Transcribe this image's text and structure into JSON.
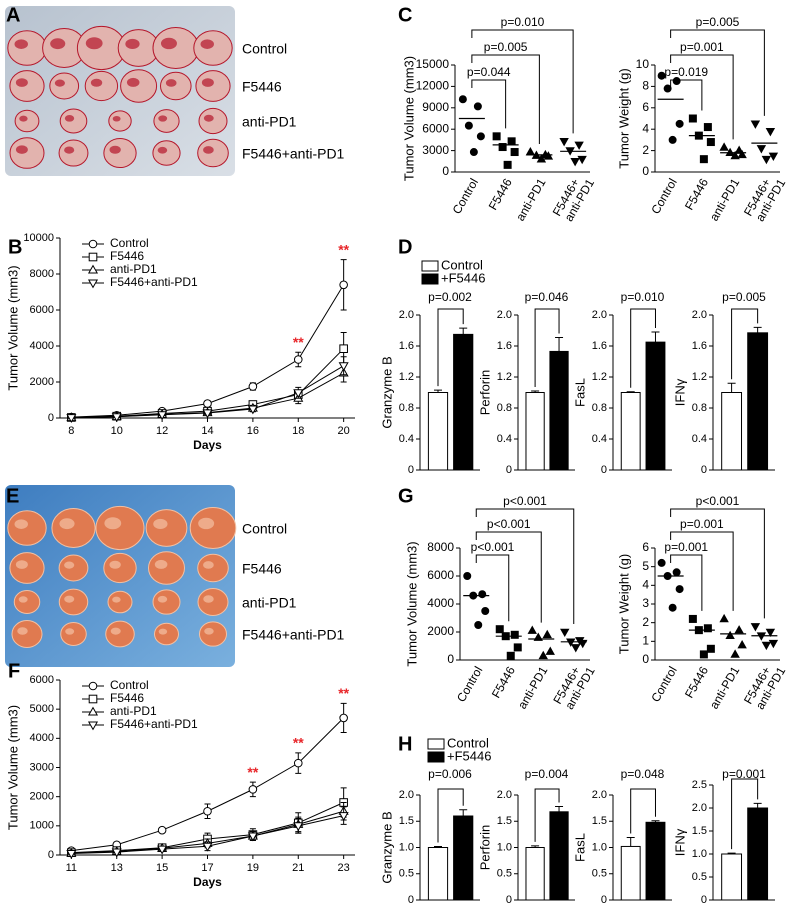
{
  "chart_data": [
    {
      "type": "photo",
      "panel": "A",
      "labels": [
        "Control",
        "F5446",
        "anti-PD1",
        "F5446+anti-PD1"
      ]
    },
    {
      "type": "dot",
      "panel": "C",
      "categories": [
        "Control",
        "F5446",
        "anti-PD1",
        [
          "F5446+",
          "anti-PD1"
        ]
      ],
      "markers": [
        "circle",
        "square",
        "triangle",
        "triangle-down"
      ],
      "color": "#000000",
      "charts": [
        {
          "ylabel": "Tumor Volume (mm3)",
          "ylim": [
            0,
            15000
          ],
          "yticks": [
            0,
            3000,
            6000,
            9000,
            12000,
            15000
          ],
          "groups": [
            [
              10200,
              9200,
              6500,
              5000,
              2800
            ],
            [
              5000,
              4300,
              3500,
              2800,
              1000
            ],
            [
              2800,
              2400,
              2300,
              2200,
              1800
            ],
            [
              4300,
              3800,
              3000,
              1800,
              1500
            ]
          ],
          "means": [
            7500,
            3800,
            2400,
            2900
          ],
          "p_values": [
            null,
            "p=0.044",
            "p=0.005",
            "p=0.010"
          ]
        },
        {
          "ylabel": "Tumor Weight (g)",
          "ylim": [
            0,
            10
          ],
          "yticks": [
            0,
            2,
            4,
            6,
            8,
            10
          ],
          "groups": [
            [
              9,
              8.5,
              7.8,
              4.5,
              3
            ],
            [
              5,
              4.2,
              3.4,
              2.8,
              1.2
            ],
            [
              2.3,
              2,
              1.8,
              1.6,
              1.5
            ],
            [
              4.5,
              3.8,
              2.2,
              1.5,
              1.2
            ]
          ],
          "means": [
            6.8,
            3.4,
            1.8,
            2.7
          ],
          "p_values": [
            null,
            "p=0.019",
            "p=0.001",
            "p=0.005"
          ]
        }
      ]
    },
    {
      "type": "line",
      "panel": "B",
      "x": [
        8,
        10,
        12,
        14,
        16,
        18,
        20
      ],
      "xlim": [
        7.5,
        20.5
      ],
      "xticks": [
        8,
        10,
        12,
        14,
        16,
        18,
        20
      ],
      "xlabel": "Days",
      "ylabel": "Tumor Volume (mm3)",
      "ylim": [
        0,
        10000
      ],
      "yticks": [
        0,
        2000,
        4000,
        6000,
        8000,
        10000
      ],
      "significance": [
        null,
        null,
        null,
        null,
        null,
        "**",
        "**"
      ],
      "significance_color": "#e8262a",
      "series": [
        {
          "name": "Control",
          "color": "#000000",
          "marker": "circle",
          "values": [
            50,
            150,
            380,
            800,
            1750,
            3250,
            7400
          ],
          "errors": [
            30,
            60,
            80,
            150,
            200,
            400,
            1400
          ]
        },
        {
          "name": "F5446",
          "color": "#000000",
          "marker": "square",
          "values": [
            30,
            100,
            250,
            380,
            750,
            1300,
            3850
          ],
          "errors": [
            20,
            40,
            60,
            100,
            150,
            250,
            900
          ]
        },
        {
          "name": "anti-PD1",
          "color": "#000000",
          "marker": "triangle",
          "values": [
            20,
            80,
            200,
            300,
            550,
            1100,
            2500
          ],
          "errors": [
            20,
            30,
            50,
            80,
            150,
            300,
            500
          ]
        },
        {
          "name": "F5446+anti-PD1",
          "color": "#000000",
          "marker": "triangle-down",
          "values": [
            20,
            70,
            180,
            280,
            500,
            1400,
            2900
          ],
          "errors": [
            20,
            30,
            50,
            80,
            150,
            300,
            500
          ]
        }
      ]
    },
    {
      "type": "bar",
      "panel": "D",
      "series": [
        {
          "name": "Control",
          "color": "#ffffff"
        },
        {
          "name": "+F5446",
          "color": "#000000"
        }
      ],
      "charts": [
        {
          "ylabel": "Granzyme B",
          "ylim": [
            0,
            2
          ],
          "yticks": [
            0,
            0.4,
            0.8,
            1.2,
            1.6,
            {
              "value": 2,
              "label": "2.0"
            }
          ],
          "values": [
            1.0,
            1.75
          ],
          "errors": [
            0.03,
            0.08
          ],
          "p_value": "p=0.002"
        },
        {
          "ylabel": "Perforin",
          "ylim": [
            0,
            2
          ],
          "yticks": [
            0,
            0.4,
            0.8,
            1.2,
            1.6,
            {
              "value": 2,
              "label": "2.0"
            }
          ],
          "values": [
            1.0,
            1.53
          ],
          "errors": [
            0.02,
            0.18
          ],
          "p_value": "p=0.046"
        },
        {
          "ylabel": "FasL",
          "ylim": [
            0,
            2
          ],
          "yticks": [
            0,
            0.4,
            0.8,
            1.2,
            1.6,
            {
              "value": 2,
              "label": "2.0"
            }
          ],
          "values": [
            1.0,
            1.65
          ],
          "errors": [
            0.01,
            0.13
          ],
          "p_value": "p=0.010"
        },
        {
          "ylabel": "IFNγ",
          "ylim": [
            0,
            2
          ],
          "yticks": [
            0,
            0.4,
            0.8,
            1.2,
            1.6,
            {
              "value": 2,
              "label": "2.0"
            }
          ],
          "values": [
            1.0,
            1.77
          ],
          "errors": [
            0.12,
            0.07
          ],
          "p_value": "p=0.005"
        }
      ]
    },
    {
      "type": "photo",
      "panel": "E",
      "labels": [
        "Control",
        "F5446",
        "anti-PD1",
        "F5446+anti-PD1"
      ]
    },
    {
      "type": "dot",
      "panel": "G",
      "categories": [
        "Control",
        "F5446",
        "anti-PD1",
        [
          "F5446+",
          "anti-PD1"
        ]
      ],
      "markers": [
        "circle",
        "square",
        "triangle",
        "triangle-down"
      ],
      "color": "#000000",
      "charts": [
        {
          "ylabel": "Tumor Volume (mm3)",
          "ylim": [
            0,
            8000
          ],
          "yticks": [
            0,
            2000,
            4000,
            6000,
            8000
          ],
          "groups": [
            [
              6000,
              4700,
              4600,
              3500,
              2500
            ],
            [
              2200,
              1800,
              1700,
              900,
              300
            ],
            [
              2100,
              1800,
              1600,
              600,
              300
            ],
            [
              2000,
              1400,
              1300,
              1200,
              900
            ]
          ],
          "means": [
            4600,
            1700,
            1500,
            1300
          ],
          "p_values": [
            null,
            "p<0.001",
            "p<0.001",
            "p<0.001"
          ]
        },
        {
          "ylabel": "Tumor Weight (g)",
          "ylim": [
            0,
            6
          ],
          "yticks": [
            0,
            1,
            2,
            3,
            4,
            5,
            6
          ],
          "groups": [
            [
              5.2,
              4.7,
              4.5,
              3.8,
              2.8
            ],
            [
              2.2,
              1.7,
              1.6,
              0.6,
              0.3
            ],
            [
              2.2,
              1.6,
              1.3,
              0.8,
              0.3
            ],
            [
              1.8,
              1.5,
              1.3,
              0.9,
              0.8
            ]
          ],
          "means": [
            4.5,
            1.6,
            1.4,
            1.3
          ],
          "p_values": [
            null,
            "p=0.001",
            "p=0.001",
            "p<0.001"
          ]
        }
      ]
    },
    {
      "type": "line",
      "panel": "F",
      "x": [
        11,
        13,
        15,
        17,
        19,
        21,
        23
      ],
      "xlim": [
        10.5,
        23.5
      ],
      "xticks": [
        11,
        13,
        15,
        17,
        19,
        21,
        23
      ],
      "xlabel": "Days",
      "ylabel": "Tumor Volume (mm3)",
      "ylim": [
        0,
        6000
      ],
      "yticks": [
        0,
        1000,
        2000,
        3000,
        4000,
        5000,
        6000
      ],
      "significance": [
        null,
        null,
        null,
        null,
        "**",
        "**",
        "**"
      ],
      "significance_color": "#e8262a",
      "series": [
        {
          "name": "Control",
          "color": "#000000",
          "marker": "circle",
          "values": [
            150,
            350,
            850,
            1500,
            2250,
            3150,
            4700
          ],
          "errors": [
            30,
            50,
            80,
            250,
            250,
            350,
            500
          ]
        },
        {
          "name": "F5446",
          "color": "#000000",
          "marker": "square",
          "values": [
            80,
            150,
            250,
            550,
            700,
            1100,
            1800
          ],
          "errors": [
            20,
            30,
            60,
            200,
            200,
            350,
            500
          ]
        },
        {
          "name": "anti-PD1",
          "color": "#000000",
          "marker": "triangle",
          "values": [
            60,
            120,
            230,
            400,
            650,
            1050,
            1500
          ],
          "errors": [
            20,
            30,
            50,
            150,
            150,
            250,
            300
          ]
        },
        {
          "name": "F5446+anti-PD1",
          "color": "#000000",
          "marker": "triangle-down",
          "values": [
            50,
            100,
            200,
            300,
            650,
            1000,
            1350
          ],
          "errors": [
            20,
            30,
            50,
            150,
            150,
            250,
            300
          ]
        }
      ]
    },
    {
      "type": "bar",
      "panel": "H",
      "series": [
        {
          "name": "Control",
          "color": "#ffffff"
        },
        {
          "name": "+F5446",
          "color": "#000000"
        }
      ],
      "charts": [
        {
          "ylabel": "Granzyme B",
          "ylim": [
            0,
            2
          ],
          "yticks": [
            0,
            0.5,
            {
              "value": 1,
              "label": "1.0"
            },
            1.5,
            {
              "value": 2,
              "label": "2.0"
            }
          ],
          "values": [
            1.0,
            1.6
          ],
          "errors": [
            0.02,
            0.12
          ],
          "p_value": "p=0.006"
        },
        {
          "ylabel": "Perforin",
          "ylim": [
            0,
            2
          ],
          "yticks": [
            0,
            0.5,
            {
              "value": 1,
              "label": "1.0"
            },
            1.5,
            {
              "value": 2,
              "label": "2.0"
            }
          ],
          "values": [
            1.0,
            1.68
          ],
          "errors": [
            0.03,
            0.1
          ],
          "p_value": "p=0.004"
        },
        {
          "ylabel": "FasL",
          "ylim": [
            0,
            2
          ],
          "yticks": [
            0,
            0.5,
            {
              "value": 1,
              "label": "1.0"
            },
            1.5,
            {
              "value": 2,
              "label": "2.0"
            }
          ],
          "values": [
            1.02,
            1.48
          ],
          "errors": [
            0.17,
            0.03
          ],
          "p_value": "p=0.048"
        },
        {
          "ylabel": "IFNγ",
          "ylim": [
            0,
            2.5
          ],
          "yticks": [
            0,
            0.5,
            {
              "value": 1,
              "label": "1.0"
            },
            1.5,
            {
              "value": 2,
              "label": "2.0"
            },
            2.5
          ],
          "values": [
            1.0,
            2.0
          ],
          "errors": [
            0.02,
            0.1
          ],
          "p_value": "p=0.001"
        }
      ]
    }
  ]
}
